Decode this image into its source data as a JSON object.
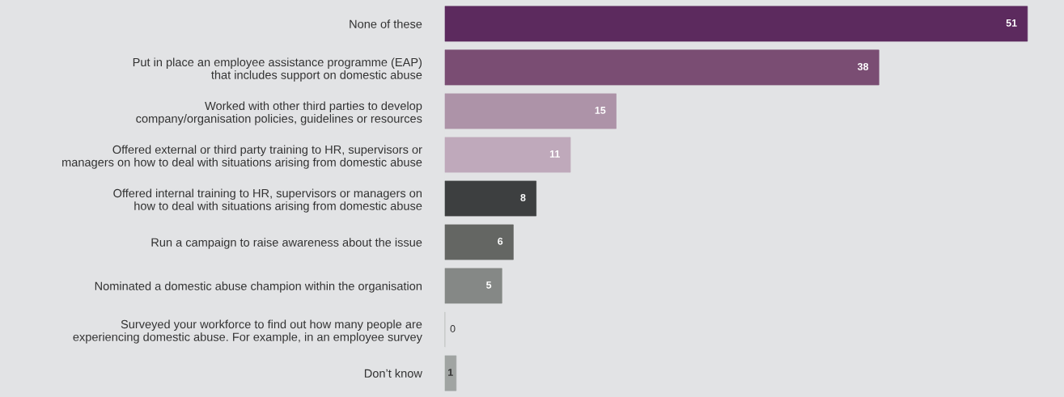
{
  "chart_data": {
    "type": "bar",
    "orientation": "horizontal",
    "data_labels": true,
    "grid": false,
    "legend": false,
    "categories": [
      "None of these",
      "Put in place an employee assistance programme (EAP)\nthat includes support on domestic abuse",
      "Worked with other third parties to develop\ncompany/organisation policies, guidelines or resources",
      "Offered external or third party training to HR, supervisors or\nmanagers on how to deal with situations arising from domestic abuse",
      "Offered internal training to HR, supervisors or managers on\nhow to deal with situations arising from domestic abuse",
      "Run a campaign to raise awareness about the issue",
      "Nominated a domestic abuse champion within the organisation",
      "Surveyed your workforce to find out how many people are\nexperiencing domestic abuse. For example, in an employee survey",
      "Don’t know"
    ],
    "values": [
      51,
      38,
      15,
      11,
      8,
      6,
      5,
      0,
      1
    ],
    "colors": [
      "#5c2a5e",
      "#7a4d73",
      "#ad93a8",
      "#bfa9bb",
      "#3d3f40",
      "#646663",
      "#858886",
      "#a0a4a2",
      "#a0a4a2"
    ]
  }
}
